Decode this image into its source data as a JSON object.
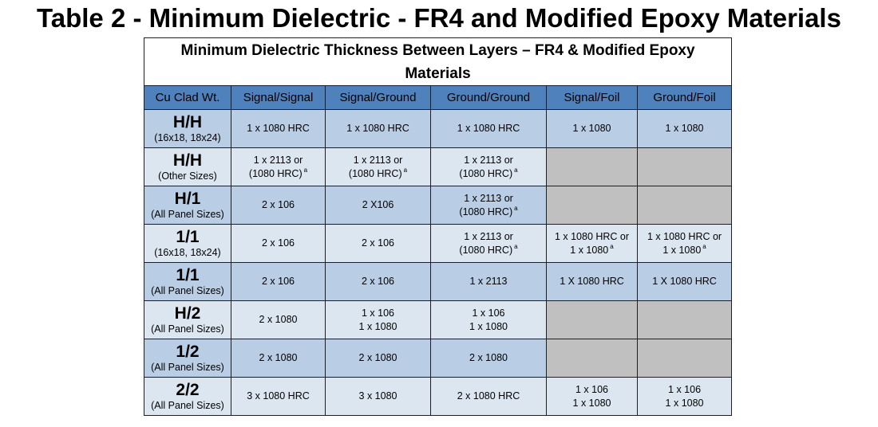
{
  "title": "Table 2 - Minimum Dielectric - FR4 and Modified Epoxy Materials",
  "table": {
    "caption": "Minimum Dielectric Thickness  Between Layers – FR4 & Modified Epoxy Materials",
    "headers": [
      "Cu Clad Wt.",
      "Signal/Signal",
      "Signal/Ground",
      "Ground/Ground",
      "Signal/Foil",
      "Ground/Foil"
    ],
    "footnote_marker": "a",
    "rows": [
      {
        "clad": "H/H",
        "note": "(16x18, 18x24)",
        "ss": {
          "l1": "1 x 1080 HRC"
        },
        "sg": {
          "l1": "1 x 1080 HRC"
        },
        "gg": {
          "l1": "1 x 1080 HRC"
        },
        "sf": {
          "l1": "1 x 1080"
        },
        "gf": {
          "l1": "1 x 1080"
        }
      },
      {
        "clad": "H/H",
        "note": "(Other Sizes)",
        "ss": {
          "l1": "1 x 2113 or",
          "l2": "(1080 HRC)"
        },
        "sg": {
          "l1": "1 x 2113 or",
          "l2": "(1080 HRC)"
        },
        "gg": {
          "l1": "1 x 2113 or",
          "l2": "(1080 HRC)"
        },
        "sf": {},
        "gf": {}
      },
      {
        "clad": "H/1",
        "note": "(All Panel Sizes)",
        "ss": {
          "l1": "2 x 106"
        },
        "sg": {
          "l1": "2 X106"
        },
        "gg": {
          "l1": "1 x 2113 or",
          "l2": "(1080 HRC)"
        },
        "sf": {},
        "gf": {}
      },
      {
        "clad": "1/1",
        "note": "(16x18, 18x24)",
        "ss": {
          "l1": "2 x 106"
        },
        "sg": {
          "l1": "2 x 106"
        },
        "gg": {
          "l1": "1 x 2113 or",
          "l2": "(1080 HRC)"
        },
        "sf": {
          "l1": "1 x 1080 HRC or",
          "l2": "1 x 1080"
        },
        "gf": {
          "l1": "1 x 1080 HRC or",
          "l2": "1 x 1080"
        }
      },
      {
        "clad": "1/1",
        "note": "(All Panel Sizes)",
        "ss": {
          "l1": "2 x 106"
        },
        "sg": {
          "l1": "2 x 106"
        },
        "gg": {
          "l1": "1 x 2113"
        },
        "sf": {
          "l1": "1 X 1080 HRC"
        },
        "gf": {
          "l1": "1 X 1080 HRC"
        }
      },
      {
        "clad": "H/2",
        "note": "(All Panel Sizes)",
        "ss": {
          "l1": "2 x 1080"
        },
        "sg": {
          "l1": "1 x 106",
          "l2": "1 x 1080"
        },
        "gg": {
          "l1": "1 x 106",
          "l2": "1 x 1080"
        },
        "sf": {},
        "gf": {}
      },
      {
        "clad": "1/2",
        "note": "(All Panel Sizes)",
        "ss": {
          "l1": "2 x 1080"
        },
        "sg": {
          "l1": "2 x 1080"
        },
        "gg": {
          "l1": "2 x 1080"
        },
        "sf": {},
        "gf": {}
      },
      {
        "clad": "2/2",
        "note": "(All Panel Sizes)",
        "ss": {
          "l1": "3 x 1080 HRC"
        },
        "sg": {
          "l1": "3 x 1080"
        },
        "gg": {
          "l1": "2 x 1080 HRC"
        },
        "sf": {
          "l1": "1 x 106",
          "l2": "1 x 1080"
        },
        "gf": {
          "l1": "1 x 106",
          "l2": "1 x 1080"
        }
      }
    ]
  }
}
